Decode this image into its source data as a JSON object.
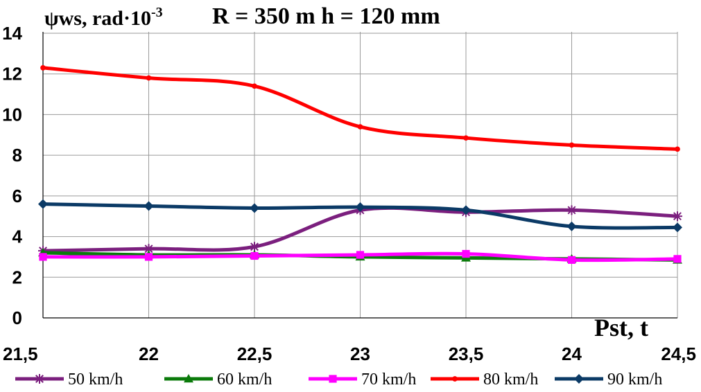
{
  "chart_data": {
    "type": "line",
    "title": "R = 350 m  h = 120 mm",
    "ylabel": "ψws, rad·10",
    "ylabel_exp": "-3",
    "xlabel": "Pst, t",
    "x": [
      21.5,
      22,
      22.5,
      23,
      23.5,
      24,
      24.5
    ],
    "x_tick_labels": [
      "21,5",
      "22",
      "22,5",
      "23",
      "23,5",
      "24",
      "24,5"
    ],
    "y_ticks": [
      "0",
      "2",
      "4",
      "6",
      "8",
      "10",
      "12",
      "14"
    ],
    "ylim": [
      0,
      14
    ],
    "grid": true,
    "legend_position": "bottom",
    "series": [
      {
        "name": "50 km/h",
        "color": "#7B1F7E",
        "marker": "star",
        "values": [
          3.3,
          3.4,
          3.5,
          5.3,
          5.2,
          5.3,
          5.0
        ]
      },
      {
        "name": "60 km/h",
        "color": "#0A7A0A",
        "marker": "triangle",
        "values": [
          3.2,
          3.1,
          3.1,
          3.0,
          2.95,
          2.9,
          2.85
        ]
      },
      {
        "name": "70 km/h",
        "color": "#FF00FF",
        "marker": "square",
        "values": [
          3.0,
          3.0,
          3.05,
          3.1,
          3.15,
          2.85,
          2.9
        ]
      },
      {
        "name": "80 km/h",
        "color": "#FF0000",
        "marker": "circle",
        "values": [
          12.3,
          11.8,
          11.4,
          9.4,
          8.85,
          8.5,
          8.3
        ]
      },
      {
        "name": "90 km/h",
        "color": "#0B3A66",
        "marker": "diamond",
        "values": [
          5.6,
          5.5,
          5.4,
          5.45,
          5.3,
          4.5,
          4.45
        ]
      }
    ]
  }
}
